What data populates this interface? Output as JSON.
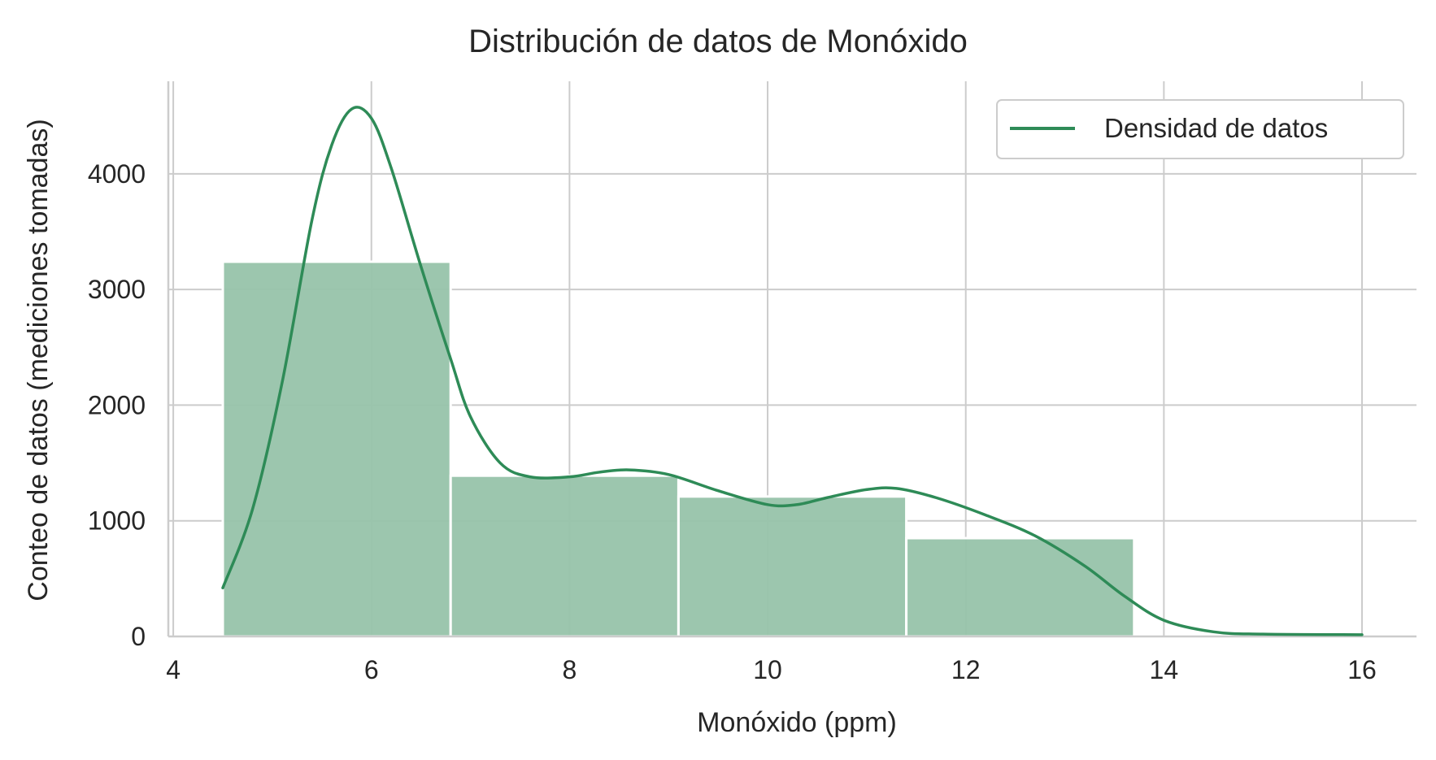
{
  "chart_data": {
    "type": "bar",
    "title": "Distribución de datos de Monóxido",
    "xlabel": "Monóxido (ppm)",
    "ylabel": "Conteo de datos (mediciones tomadas)",
    "xlim": [
      3.95,
      16.55
    ],
    "ylim": [
      0,
      4800
    ],
    "x_ticks": [
      4,
      6,
      8,
      10,
      12,
      14,
      16
    ],
    "y_ticks": [
      0,
      1000,
      2000,
      3000,
      4000
    ],
    "grid": true,
    "legend_position": "top-right",
    "bins": [
      {
        "x0": 4.5,
        "x1": 6.8,
        "value": 3240
      },
      {
        "x0": 6.8,
        "x1": 9.1,
        "value": 1390
      },
      {
        "x0": 9.1,
        "x1": 11.4,
        "value": 1210
      },
      {
        "x0": 11.4,
        "x1": 13.7,
        "value": 850
      }
    ],
    "series": [
      {
        "name": "Densidad de datos",
        "type": "line",
        "color": "#2e8b57",
        "x": [
          4.5,
          4.8,
          5.1,
          5.4,
          5.6,
          5.8,
          6.0,
          6.2,
          6.5,
          6.8,
          7.0,
          7.3,
          7.6,
          8.0,
          8.3,
          8.6,
          9.0,
          9.5,
          10.0,
          10.3,
          10.6,
          11.0,
          11.3,
          11.7,
          12.2,
          12.7,
          13.2,
          13.6,
          14.0,
          14.5,
          15.0,
          16.0
        ],
        "y": [
          420,
          1100,
          2200,
          3600,
          4250,
          4560,
          4480,
          4050,
          3200,
          2400,
          1900,
          1500,
          1380,
          1380,
          1420,
          1440,
          1400,
          1260,
          1140,
          1140,
          1200,
          1270,
          1280,
          1200,
          1050,
          870,
          610,
          350,
          140,
          40,
          20,
          15
        ]
      }
    ],
    "colors": {
      "bar_fill": "#97c3aa",
      "line": "#2e8b57",
      "grid": "#cccccc",
      "axis": "#cccccc",
      "text": "#262626"
    }
  }
}
